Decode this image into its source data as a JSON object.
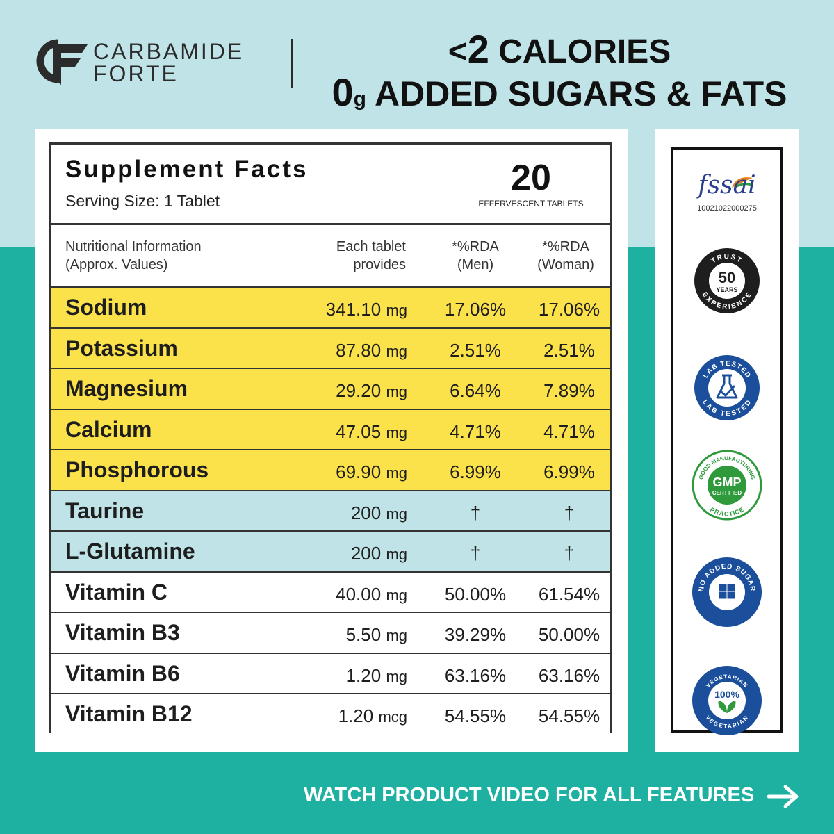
{
  "brand": {
    "line1": "CARBAMIDE",
    "line2": "FORTE",
    "logo": "cf-logo-icon"
  },
  "headline": {
    "line1_prefix": "<",
    "line1_number": "2",
    "line1_text": " CALORIES",
    "line2_number": "0",
    "line2_unit": "g",
    "line2_text": " ADDED SUGARS & FATS"
  },
  "facts": {
    "title": "Supplement Facts",
    "serving": "Serving Size: 1 Tablet",
    "count": "20",
    "count_label": "EFFERVESCENT TABLETS",
    "columns": {
      "info_line1": "Nutritional Information",
      "info_line2": "(Approx. Values)",
      "each_line1": "Each tablet",
      "each_line2": "provides",
      "men_line1": "*%RDA",
      "men_line2": "(Men)",
      "woman_line1": "*%RDA",
      "woman_line2": "(Woman)"
    },
    "rows": [
      {
        "name": "Sodium",
        "amount": "341.10",
        "unit": "mg",
        "men": "17.06%",
        "woman": "17.06%",
        "group": "mineral"
      },
      {
        "name": "Potassium",
        "amount": "87.80",
        "unit": "mg",
        "men": "2.51%",
        "woman": "2.51%",
        "group": "mineral"
      },
      {
        "name": "Magnesium",
        "amount": "29.20",
        "unit": "mg",
        "men": "6.64%",
        "woman": "7.89%",
        "group": "mineral"
      },
      {
        "name": "Calcium",
        "amount": "47.05",
        "unit": "mg",
        "men": "4.71%",
        "woman": "4.71%",
        "group": "mineral"
      },
      {
        "name": "Phosphorous",
        "amount": "69.90",
        "unit": "mg",
        "men": "6.99%",
        "woman": "6.99%",
        "group": "mineral"
      },
      {
        "name": "Taurine",
        "amount": "200",
        "unit": "mg",
        "men": "†",
        "woman": "†",
        "group": "amino"
      },
      {
        "name": "L-Glutamine",
        "amount": "200",
        "unit": "mg",
        "men": "†",
        "woman": "†",
        "group": "amino"
      },
      {
        "name": "Vitamin C",
        "amount": "40.00",
        "unit": "mg",
        "men": "50.00%",
        "woman": "61.54%",
        "group": "vitamin"
      },
      {
        "name": "Vitamin B3",
        "amount": "5.50",
        "unit": "mg",
        "men": "39.29%",
        "woman": "50.00%",
        "group": "vitamin"
      },
      {
        "name": "Vitamin B6",
        "amount": "1.20",
        "unit": "mg",
        "men": "63.16%",
        "woman": "63.16%",
        "group": "vitamin"
      },
      {
        "name": "Vitamin B12",
        "amount": "1.20",
        "unit": "mcg",
        "men": "54.55%",
        "woman": "54.55%",
        "group": "vitamin"
      }
    ]
  },
  "badges": {
    "fssai": {
      "word": "fssai",
      "number": "10021022000275",
      "icon": "fssai-logo-icon"
    },
    "trust": {
      "top": "TRUST",
      "number": "50",
      "years": "YEARS",
      "bottom": "EXPERIENCE",
      "icon": "trust-50-years-badge-icon"
    },
    "lab": {
      "top": "LAB TESTED",
      "bottom": "LAB TESTED",
      "icon": "lab-tested-badge-icon"
    },
    "gmp": {
      "top": "GOOD MANUFACTURING",
      "main": "GMP",
      "sub": "CERTIFIED",
      "bottom": "PRACTICE",
      "icon": "gmp-certified-badge-icon"
    },
    "sugar": {
      "text": "NO ADDED SUGAR",
      "icon": "no-added-sugar-badge-icon"
    },
    "veg": {
      "top": "VEGETARIAN",
      "main": "100%",
      "bottom": "VEGETARIAN",
      "icon": "vegetarian-badge-icon"
    }
  },
  "cta": {
    "label": "WATCH PRODUCT VIDEO FOR ALL FEATURES",
    "icon": "arrow-right-icon"
  },
  "colors": {
    "top_background": "#bfe3e6",
    "bottom_background": "#1eb0a0",
    "mineral_row": "#fbe24a",
    "amino_row": "#bfe3e6",
    "badge_blue": "#1b4f9c",
    "badge_green": "#2e9a3c",
    "badge_dark": "#1e1e1e"
  }
}
